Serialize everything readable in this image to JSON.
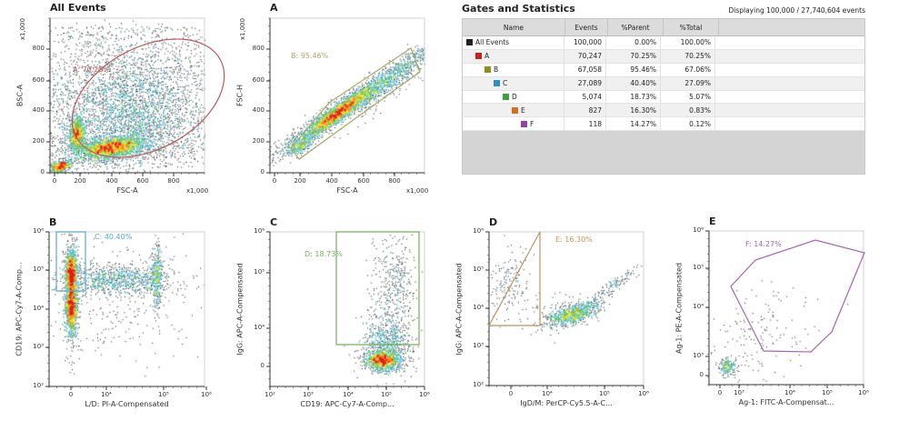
{
  "plots": [
    {
      "title": "All Events",
      "xlabel": "FSC-A",
      "ylabel": "BSC-A",
      "x_multiplier": "x1,000",
      "y_multiplier": "x1,000",
      "xticks": [
        "0",
        "200",
        "400",
        "600",
        "800"
      ],
      "yticks": [
        "0",
        "200",
        "400",
        "600",
        "800"
      ],
      "gate": {
        "label": "A: 70.25%",
        "color": "#b85a5a"
      }
    },
    {
      "title": "A",
      "xlabel": "FSC-A",
      "ylabel": "FSC-H",
      "x_multiplier": "x1,000",
      "y_multiplier": "x1,000",
      "xticks": [
        "0",
        "200",
        "400",
        "600",
        "800"
      ],
      "yticks": [
        "0",
        "200",
        "400",
        "600",
        "800"
      ],
      "gate": {
        "label": "B: 95.46%",
        "color": "#aaa866"
      }
    },
    {
      "title": "B",
      "xlabel": "L/D: PI-A-Compensated",
      "ylabel": "CD19: APC-Cy7-A-Comp...",
      "xticks": [
        "0",
        "10⁴",
        "10⁵",
        "10⁶"
      ],
      "yticks": [
        "10²",
        "10³",
        "10⁴",
        "10⁵",
        "10⁶"
      ],
      "gate": {
        "label": "C: 40.40%",
        "color": "#5aaac8"
      }
    },
    {
      "title": "C",
      "xlabel": "CD19: APC-Cy7-A-Comp...",
      "ylabel": "IgG: APC-A-Compensated",
      "xticks": [
        "10²",
        "10³",
        "10⁴",
        "10⁵",
        "10⁶"
      ],
      "yticks": [
        "10⁶",
        "10⁵",
        "10⁴",
        "0"
      ],
      "gate": {
        "label": "D: 18.73%",
        "color": "#7aae5e"
      }
    },
    {
      "title": "D",
      "xlabel": "IgD/M: PerCP-Cy5.5-A-C...",
      "ylabel": "IgG: APC-A-Compensated",
      "xticks": [
        "0",
        "10⁴",
        "10⁵",
        "10⁶"
      ],
      "yticks": [
        "10²",
        "10³",
        "10⁴",
        "10⁵",
        "10⁶"
      ],
      "gate": {
        "label": "E: 16.30%",
        "color": "#c0945a"
      }
    },
    {
      "title": "E",
      "xlabel": "Ag-1: FITC-A-Compensat...",
      "ylabel": "Ag-1: PE-A-Compensated",
      "xticks": [
        "0",
        "10³",
        "10⁴",
        "10⁵",
        "10⁶"
      ],
      "yticks": [
        "0",
        "10³",
        "10⁴",
        "10⁵",
        "10⁶"
      ],
      "gate": {
        "label": "F: 14.27%",
        "color": "#a862b4"
      }
    }
  ],
  "stats": {
    "title": "Gates and Statistics",
    "display": "Displaying 100,000 / 27,740,604 events",
    "columns": [
      "Name",
      "Events",
      "%Parent",
      "%Total"
    ],
    "rows": [
      {
        "name": "All Events",
        "events": "100,000",
        "parent": "0.00%",
        "total": "100.00%",
        "color": "#222222",
        "level": 0
      },
      {
        "name": "A",
        "events": "70,247",
        "parent": "70.25%",
        "total": "70.25%",
        "color": "#c42222",
        "level": 1
      },
      {
        "name": "B",
        "events": "67,058",
        "parent": "95.46%",
        "total": "67.06%",
        "color": "#8e8e22",
        "level": 2
      },
      {
        "name": "C",
        "events": "27,089",
        "parent": "40.40%",
        "total": "27.09%",
        "color": "#2e8fc0",
        "level": 3
      },
      {
        "name": "D",
        "events": "5,074",
        "parent": "18.73%",
        "total": "5.07%",
        "color": "#3ea03e",
        "level": 4
      },
      {
        "name": "E",
        "events": "827",
        "parent": "16.30%",
        "total": "0.83%",
        "color": "#d07020",
        "level": 5
      },
      {
        "name": "F",
        "events": "118",
        "parent": "14.27%",
        "total": "0.12%",
        "color": "#9440a6",
        "level": 6
      }
    ]
  },
  "density_colors": [
    "#1a1a1a",
    "#1e6e7a",
    "#33b4c8",
    "#5cc050",
    "#e2e030",
    "#f09020",
    "#e02020"
  ]
}
